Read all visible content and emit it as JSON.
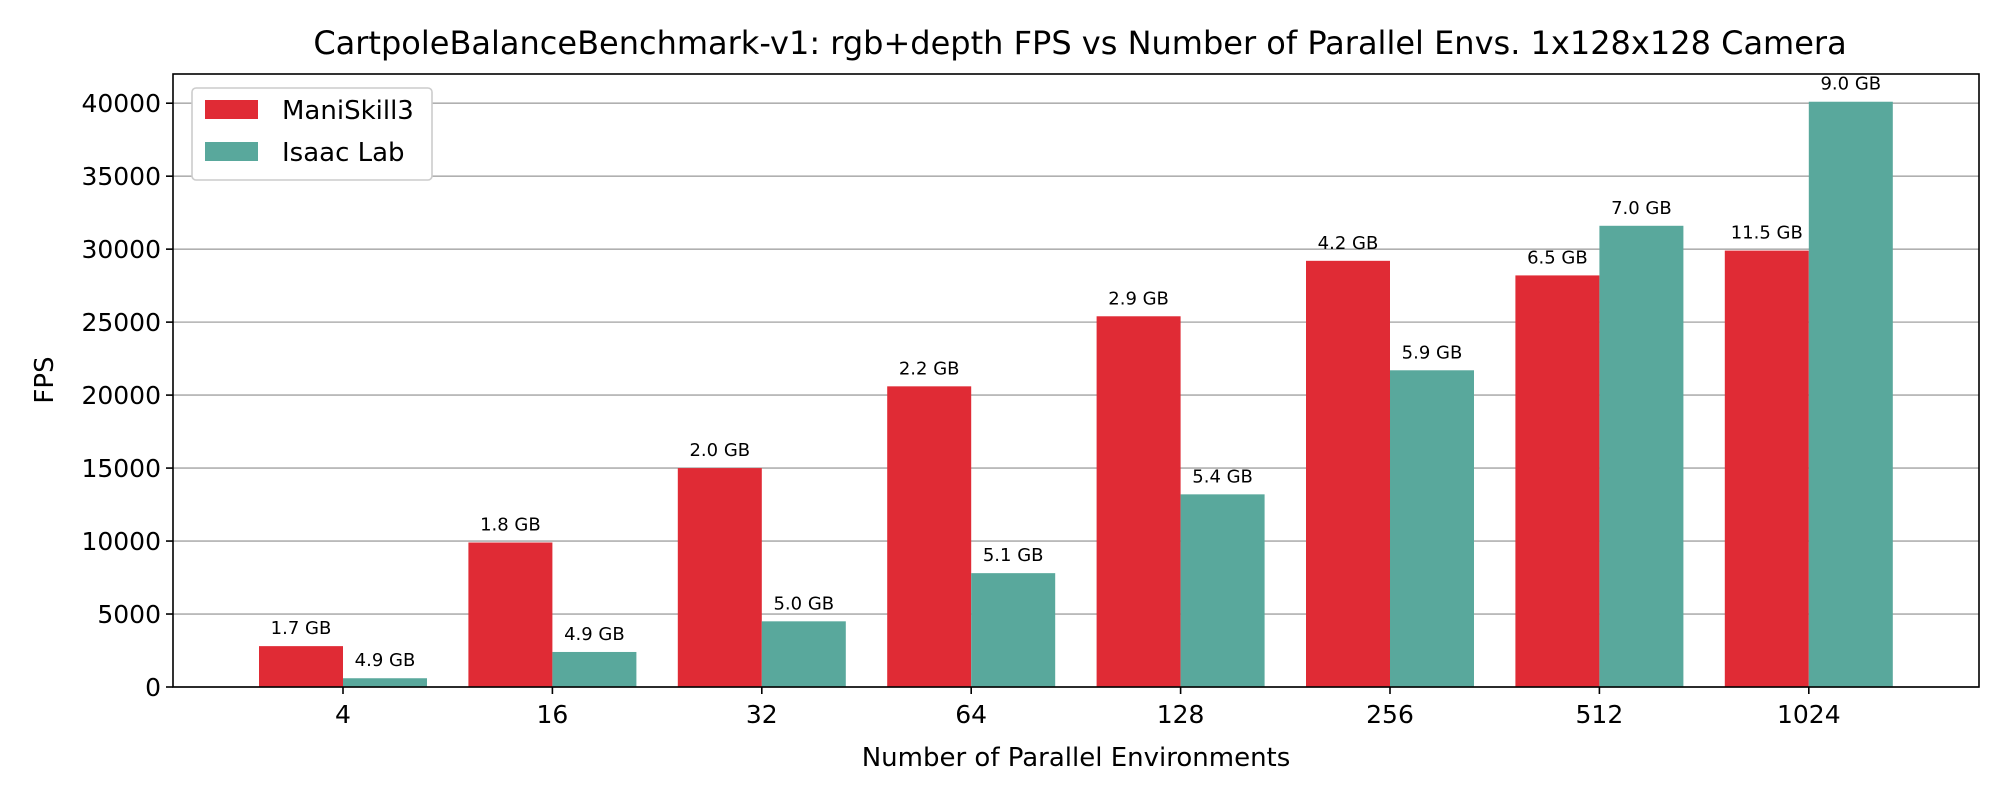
{
  "chart_data": {
    "type": "bar",
    "title": "CartpoleBalanceBenchmark-v1: rgb+depth FPS vs Number of Parallel Envs. 1x128x128 Camera",
    "xlabel": "Number of Parallel Environments",
    "ylabel": "FPS",
    "categories": [
      "4",
      "16",
      "32",
      "64",
      "128",
      "256",
      "512",
      "1024"
    ],
    "ylim": [
      0,
      42000
    ],
    "yticks": [
      0,
      5000,
      10000,
      15000,
      20000,
      25000,
      30000,
      35000,
      40000
    ],
    "grid": "horizontal",
    "legend_position": "upper-left",
    "series": [
      {
        "name": "ManiSkill3",
        "color": "#e02b35",
        "values": [
          2800,
          9900,
          15000,
          20600,
          25400,
          29200,
          28200,
          29900
        ],
        "labels": [
          "1.7 GB",
          "1.8 GB",
          "2.0 GB",
          "2.2 GB",
          "2.9 GB",
          "4.2 GB",
          "6.5 GB",
          "11.5 GB"
        ]
      },
      {
        "name": "Isaac Lab",
        "color": "#59a89c",
        "values": [
          600,
          2400,
          4500,
          7800,
          13200,
          21700,
          31600,
          40100
        ],
        "labels": [
          "4.9 GB",
          "4.9 GB",
          "5.0 GB",
          "5.1 GB",
          "5.4 GB",
          "5.9 GB",
          "7.0 GB",
          "9.0 GB"
        ]
      }
    ]
  }
}
